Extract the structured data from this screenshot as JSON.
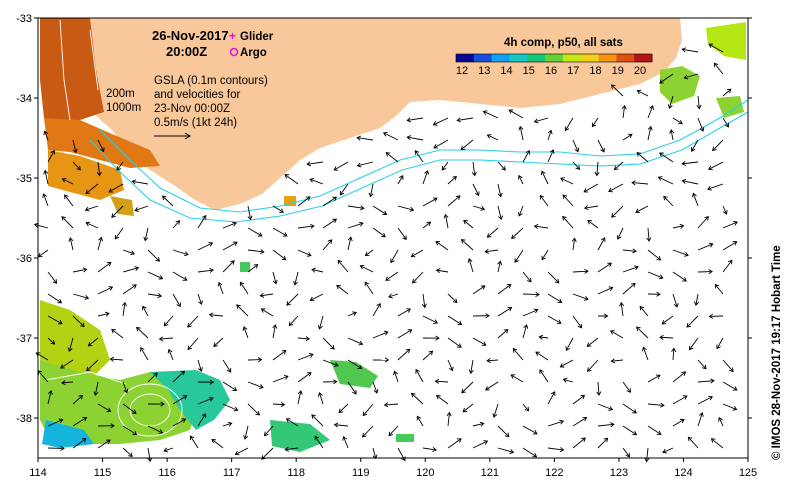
{
  "header": {
    "date": "26-Nov-2017",
    "time": "20:00Z"
  },
  "legend_markers": [
    {
      "label": "Glider",
      "color": "#e60ad2",
      "symbol": "plus"
    },
    {
      "label": "Argo",
      "color": "#e60ad2",
      "symbol": "circle"
    }
  ],
  "colorbar": {
    "title": "4h comp, p50, all sats",
    "ticks": [
      "12",
      "13",
      "14",
      "15",
      "16",
      "17",
      "18",
      "19",
      "20"
    ],
    "colors": [
      "#0a0a96",
      "#1450dc",
      "#14a0f0",
      "#14c8c8",
      "#14c878",
      "#64d232",
      "#c8e614",
      "#f0d214",
      "#f09614",
      "#e05014",
      "#b41414"
    ]
  },
  "annotation": {
    "lines": [
      "GSLA (0.1m contours)",
      "and velocities for",
      "23-Nov 00:00Z",
      "0.5m/s (1kt 24h)"
    ]
  },
  "isobaths": [
    "200m",
    "1000m"
  ],
  "credit": "© IMOS 28-Nov-2017 19:17 Hobart Time",
  "axes": {
    "x_labels": [
      "114",
      "115",
      "116",
      "117",
      "118",
      "119",
      "120",
      "121",
      "122",
      "123",
      "124",
      "125"
    ],
    "y_labels": [
      "-33",
      "-34",
      "-35",
      "-36",
      "-37",
      "-38"
    ]
  },
  "colors": {
    "land": "#f8c89a",
    "isobath": "#28d2e6",
    "arrow": "#000000"
  }
}
